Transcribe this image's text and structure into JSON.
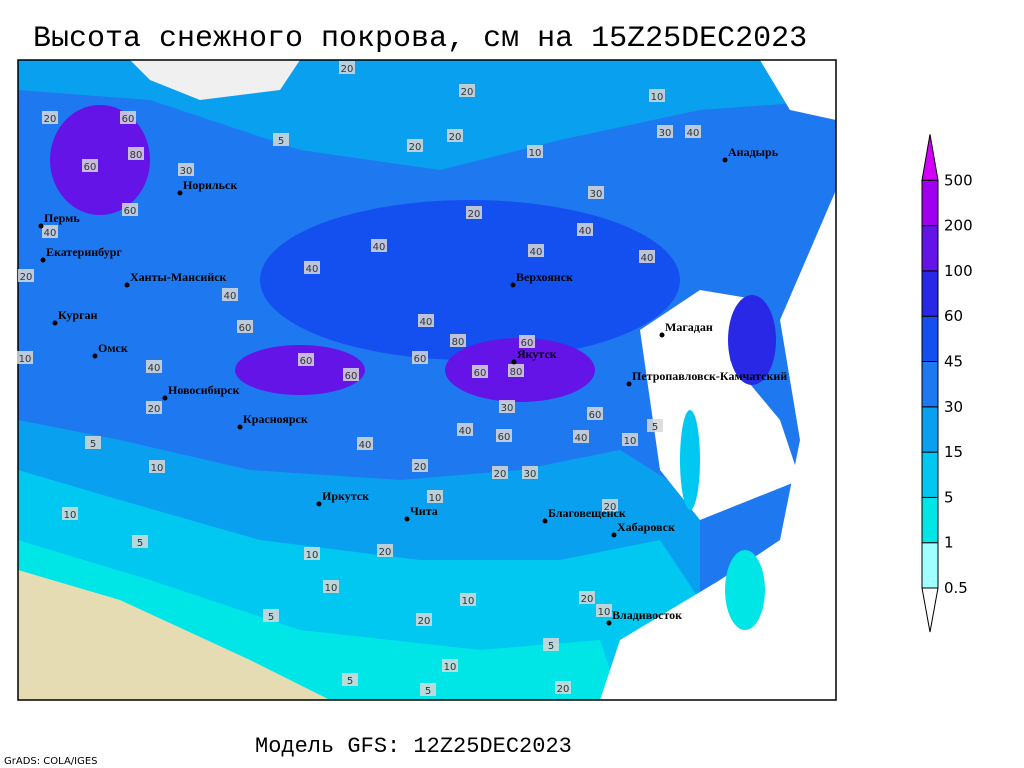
{
  "title": "Высота снежного покрова, см на 15Z25DEC2023",
  "footer": "Модель GFS: 12Z25DEC2023",
  "credit": "GrADS: COLA/IGES",
  "colorbar": {
    "levels": [
      0.5,
      1,
      5,
      15,
      30,
      45,
      60,
      100,
      200,
      500
    ],
    "colors": [
      "#ffffff",
      "#a0ffff",
      "#00e6e6",
      "#00c8f0",
      "#0aa0f0",
      "#1e78f0",
      "#1450f0",
      "#2828e6",
      "#6414e6",
      "#a000f0",
      "#d200fa"
    ]
  },
  "cities": [
    "Норильск",
    "Пермь",
    "Екатеринбург",
    "Ханты-Мансийск",
    "Курган",
    "Омск",
    "Новосибирск",
    "Красноярск",
    "Иркутск",
    "Чита",
    "Верхоянск",
    "Якутск",
    "Магадан",
    "Анадырь",
    "Петропавловск-Камчатский",
    "Благовещенск",
    "Хабаровск",
    "Владивосток"
  ],
  "contour_labels": [
    20,
    20,
    20,
    60,
    80,
    60,
    30,
    5,
    20,
    20,
    10,
    10,
    30,
    40,
    30,
    20,
    40,
    40,
    40,
    40,
    40,
    40,
    40,
    80,
    60,
    60,
    60,
    60,
    60,
    60,
    80,
    60,
    30,
    40,
    60,
    40,
    40,
    20,
    20,
    30,
    20,
    40,
    10,
    5,
    10,
    10,
    5,
    10,
    20,
    10,
    10,
    5,
    20,
    10,
    5,
    20,
    10,
    20,
    5,
    5,
    10,
    20,
    10,
    5,
    20,
    40,
    60
  ]
}
